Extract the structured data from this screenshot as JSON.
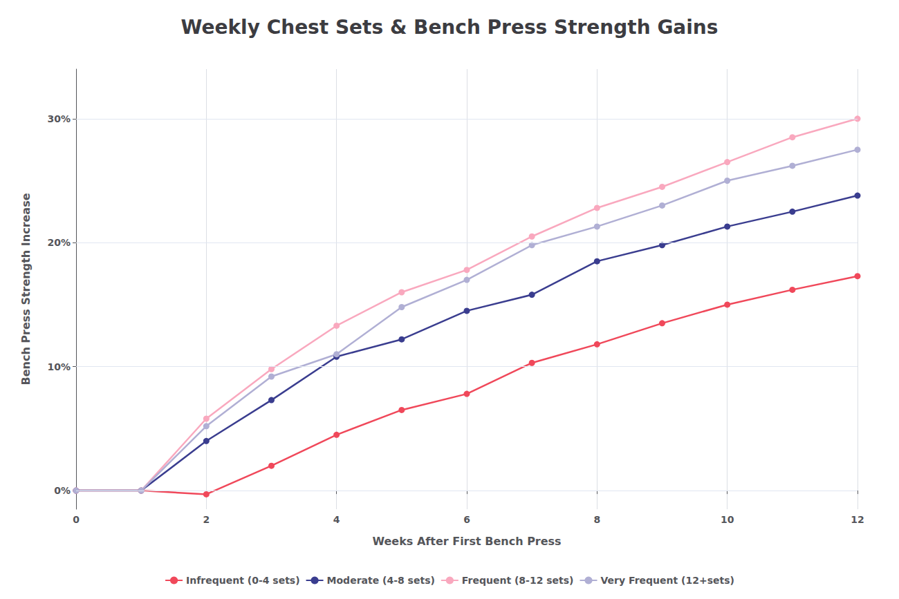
{
  "chart_data": {
    "type": "line",
    "title": "Weekly Chest Sets & Bench Press Strength Gains",
    "xlabel": "Weeks After First Bench Press",
    "ylabel": "Bench Press Strength Increase",
    "x": [
      0,
      1,
      2,
      3,
      4,
      5,
      6,
      7,
      8,
      9,
      10,
      11,
      12
    ],
    "series": [
      {
        "name": "Infrequent (0-4 sets)",
        "color": "#f0485a",
        "values": [
          0,
          0,
          -0.3,
          2,
          4.5,
          6.5,
          7.8,
          10.3,
          11.8,
          13.5,
          15.0,
          16.2,
          17.3
        ]
      },
      {
        "name": "Moderate (4-8 sets)",
        "color": "#3a3d8f",
        "values": [
          0,
          0,
          4.0,
          7.3,
          10.8,
          12.2,
          14.5,
          15.8,
          18.5,
          19.8,
          21.3,
          22.5,
          23.8
        ]
      },
      {
        "name": "Frequent (8-12 sets)",
        "color": "#f9a8be",
        "values": [
          0,
          0,
          5.8,
          9.8,
          13.3,
          16.0,
          17.8,
          20.5,
          22.8,
          24.5,
          26.5,
          28.5,
          30.0
        ]
      },
      {
        "name": "Very Frequent (12+sets)",
        "color": "#b0afd4",
        "values": [
          0,
          0,
          5.2,
          9.2,
          11.0,
          14.8,
          17.0,
          19.8,
          21.3,
          23.0,
          25.0,
          26.2,
          27.5
        ]
      }
    ],
    "xlim": [
      0,
      12
    ],
    "xticks": [
      0,
      2,
      4,
      6,
      8,
      10,
      12
    ],
    "ylim": [
      -1.5,
      34
    ],
    "yticks": [
      {
        "value": 0,
        "label": "0%"
      },
      {
        "value": 10,
        "label": "10%"
      },
      {
        "value": 20,
        "label": "20%"
      },
      {
        "value": 30,
        "label": "30%"
      }
    ],
    "grid": true,
    "legend": "bottom",
    "marker": "circle"
  }
}
